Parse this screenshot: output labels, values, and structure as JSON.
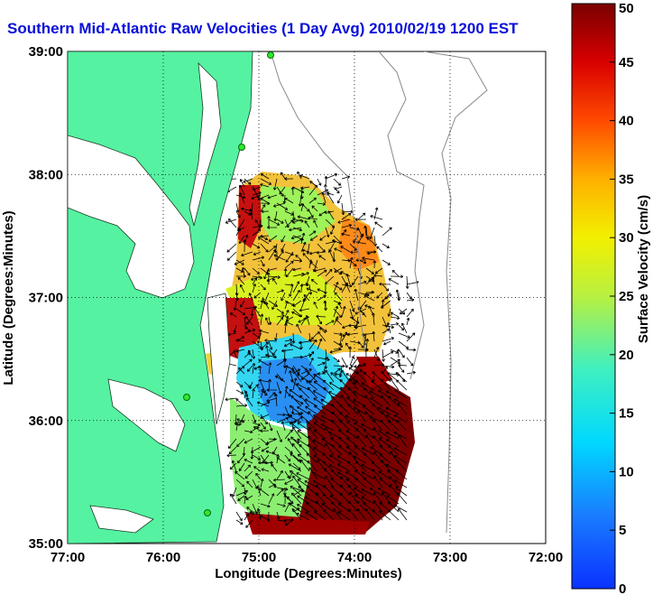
{
  "title": "Southern Mid-Atlantic Raw Velocities (1 Day Avg) 2010/02/19 1200 EST",
  "map": {
    "xlabel": "Longitude (Degrees:Minutes)",
    "ylabel": "Latitude (Degrees:Minutes)",
    "lon_ticks": [
      "77:00",
      "76:00",
      "75:00",
      "74:00",
      "73:00",
      "72:00"
    ],
    "lat_ticks": [
      "39:00",
      "38:00",
      "37:00",
      "36:00",
      "35:00"
    ],
    "lon_range": [
      -77,
      -72
    ],
    "lat_range": [
      35,
      39
    ],
    "grid": true,
    "land_color": "#55f2a2",
    "vector_color": "#000000"
  },
  "colorbar": {
    "label": "Surface Velocity (cm/s)",
    "ticks": [
      "0",
      "5",
      "10",
      "15",
      "20",
      "25",
      "30",
      "35",
      "40",
      "45",
      "50"
    ],
    "range": [
      0,
      50
    ],
    "colormap": "jet"
  }
}
